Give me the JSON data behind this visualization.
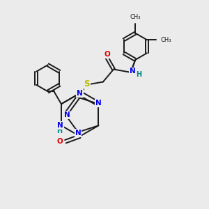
{
  "background_color": "#ebebeb",
  "bond_color": "#1a1a1a",
  "nitrogen_color": "#0000ee",
  "oxygen_color": "#dd0000",
  "sulfur_color": "#bbbb00",
  "carbon_color": "#1a1a1a",
  "nh_color": "#008888",
  "figsize": [
    3.0,
    3.0
  ],
  "dpi": 100,
  "xlim": [
    0,
    10
  ],
  "ylim": [
    0,
    10
  ]
}
